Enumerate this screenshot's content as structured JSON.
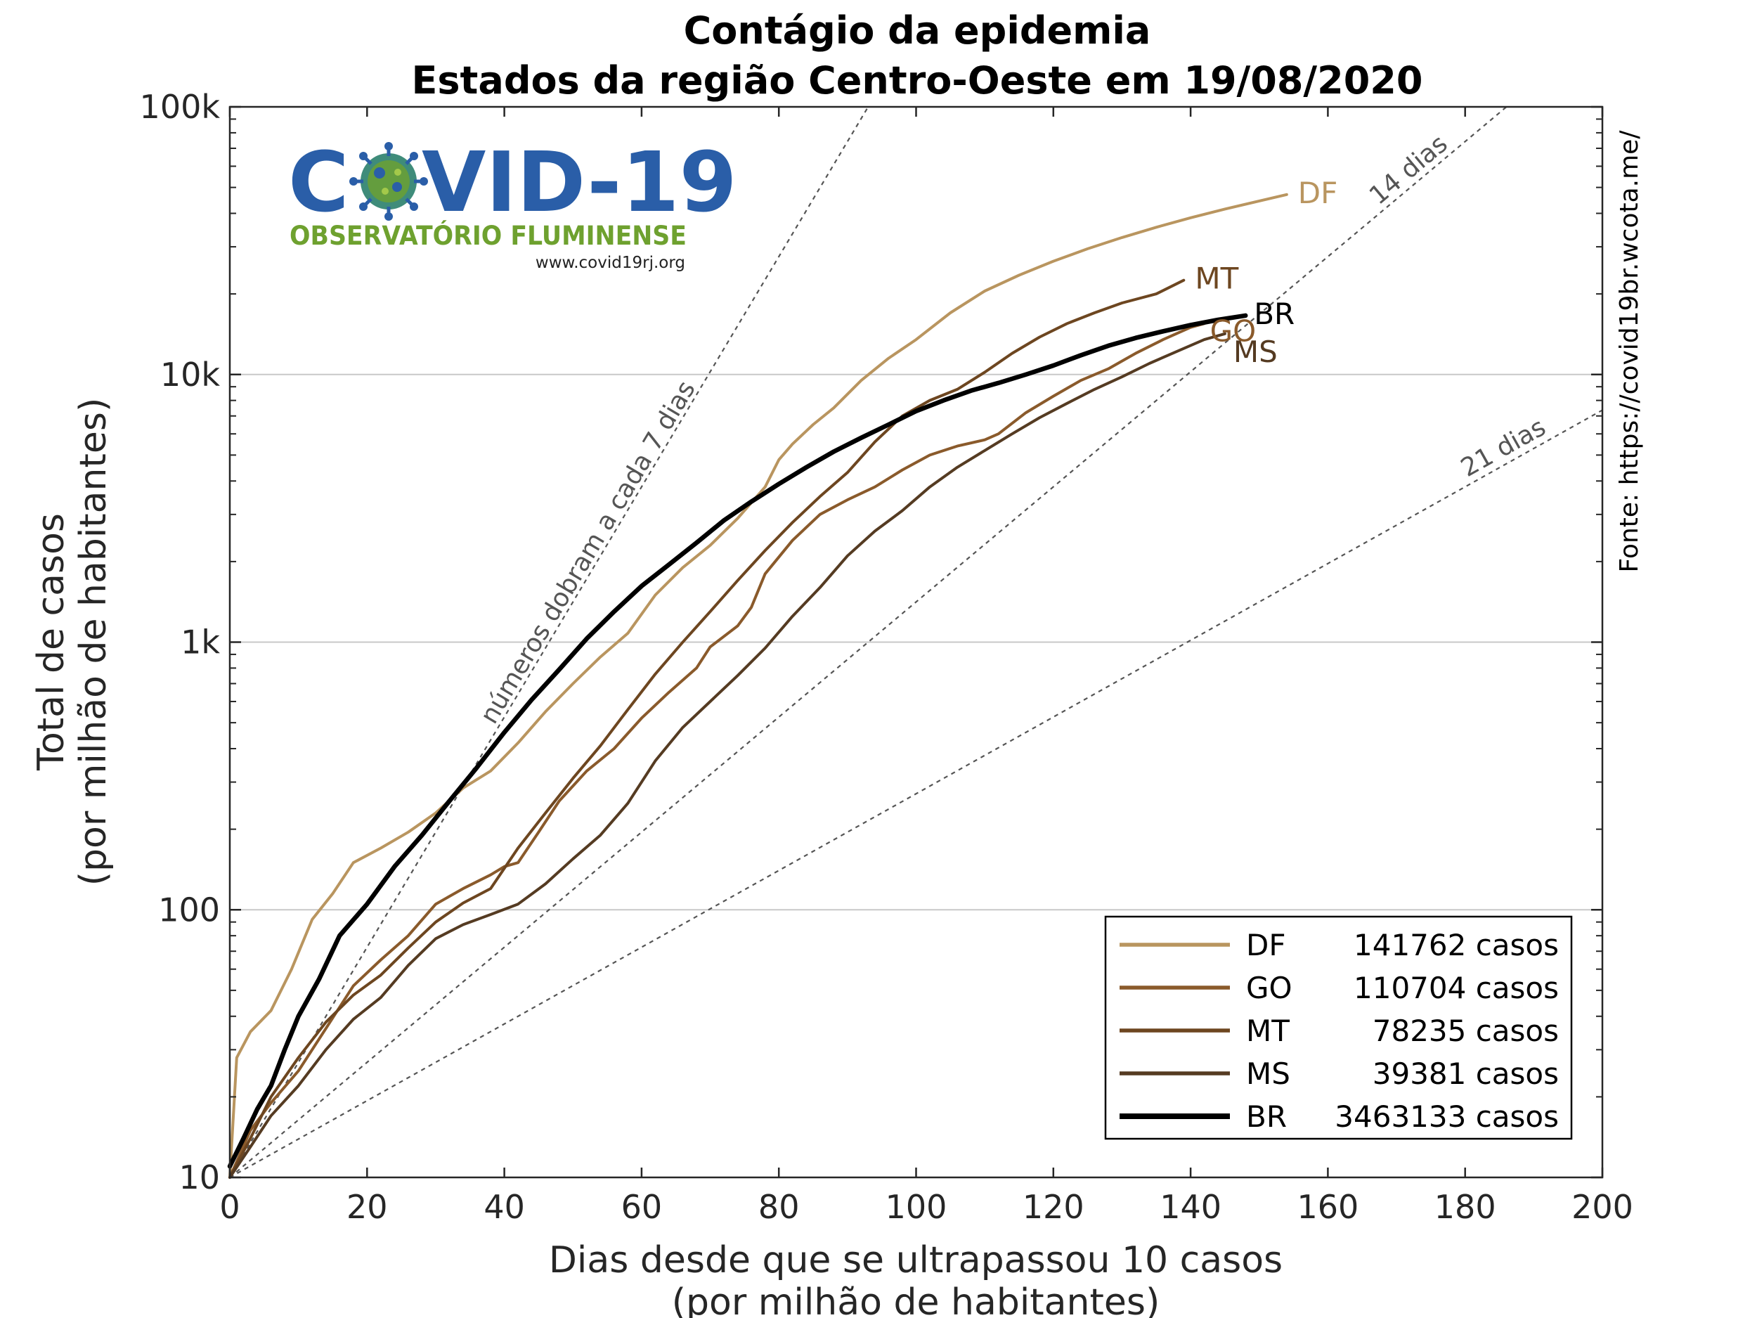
{
  "chart_data": {
    "type": "line",
    "title_lines": [
      "Contágio da epidemia",
      "Estados da região Centro-Oeste em 19/08/2020"
    ],
    "xlabel_lines": [
      "Dias desde que se ultrapassou 10 casos",
      "(por milhão de habitantes)"
    ],
    "ylabel_lines": [
      "Total de casos",
      "(por milhão de habitantes)"
    ],
    "xlim": [
      0,
      200
    ],
    "ylim": [
      10,
      100000
    ],
    "yscale": "log",
    "x_ticks": [
      0,
      20,
      40,
      60,
      80,
      100,
      120,
      140,
      160,
      180,
      200
    ],
    "x_tick_labels": [
      "0",
      "20",
      "40",
      "60",
      "80",
      "100",
      "120",
      "140",
      "160",
      "180",
      "200"
    ],
    "y_ticks": [
      10,
      100,
      1000,
      10000,
      100000
    ],
    "y_tick_labels": [
      "10",
      "100",
      "1k",
      "10k",
      "100k"
    ],
    "grid": "horizontal-major",
    "legend_position": "bottom-right",
    "source": "Fonte: https://covid19br.wcota.me/",
    "reference_lines": [
      {
        "label": "números dobram a cada 7 dias",
        "doubling_days": 7
      },
      {
        "label": "14 dias",
        "doubling_days": 14
      },
      {
        "label": "21 dias",
        "doubling_days": 21
      }
    ],
    "series": [
      {
        "name": "DF",
        "color": "#b9955f",
        "width": 4,
        "legend_text": "141762 casos",
        "points": [
          [
            0,
            10
          ],
          [
            1,
            28
          ],
          [
            3,
            35
          ],
          [
            6,
            42
          ],
          [
            9,
            60
          ],
          [
            12,
            92
          ],
          [
            15,
            115
          ],
          [
            18,
            150
          ],
          [
            22,
            170
          ],
          [
            26,
            195
          ],
          [
            30,
            230
          ],
          [
            34,
            285
          ],
          [
            38,
            330
          ],
          [
            42,
            420
          ],
          [
            46,
            550
          ],
          [
            50,
            700
          ],
          [
            54,
            880
          ],
          [
            58,
            1080
          ],
          [
            62,
            1500
          ],
          [
            66,
            1900
          ],
          [
            70,
            2300
          ],
          [
            74,
            2900
          ],
          [
            78,
            3800
          ],
          [
            80,
            4800
          ],
          [
            82,
            5500
          ],
          [
            85,
            6500
          ],
          [
            88,
            7500
          ],
          [
            92,
            9500
          ],
          [
            96,
            11500
          ],
          [
            100,
            13500
          ],
          [
            105,
            17000
          ],
          [
            110,
            20500
          ],
          [
            115,
            23500
          ],
          [
            120,
            26500
          ],
          [
            125,
            29500
          ],
          [
            130,
            32500
          ],
          [
            135,
            35500
          ],
          [
            140,
            38500
          ],
          [
            145,
            41500
          ],
          [
            150,
            44500
          ],
          [
            154,
            47000
          ]
        ]
      },
      {
        "name": "GO",
        "color": "#8a5a2b",
        "width": 4,
        "legend_text": "110704 casos",
        "points": [
          [
            0,
            10
          ],
          [
            3,
            15
          ],
          [
            6,
            19
          ],
          [
            10,
            25
          ],
          [
            14,
            36
          ],
          [
            18,
            52
          ],
          [
            22,
            65
          ],
          [
            26,
            80
          ],
          [
            30,
            105
          ],
          [
            34,
            120
          ],
          [
            38,
            135
          ],
          [
            40,
            145
          ],
          [
            42,
            150
          ],
          [
            45,
            195
          ],
          [
            48,
            255
          ],
          [
            52,
            330
          ],
          [
            56,
            400
          ],
          [
            60,
            520
          ],
          [
            64,
            650
          ],
          [
            68,
            800
          ],
          [
            70,
            960
          ],
          [
            74,
            1150
          ],
          [
            76,
            1350
          ],
          [
            78,
            1800
          ],
          [
            82,
            2400
          ],
          [
            86,
            3000
          ],
          [
            90,
            3400
          ],
          [
            94,
            3800
          ],
          [
            98,
            4400
          ],
          [
            102,
            5000
          ],
          [
            106,
            5400
          ],
          [
            110,
            5700
          ],
          [
            112,
            6000
          ],
          [
            116,
            7200
          ],
          [
            120,
            8300
          ],
          [
            124,
            9500
          ],
          [
            128,
            10500
          ],
          [
            132,
            12000
          ],
          [
            136,
            13500
          ],
          [
            140,
            15000
          ],
          [
            142,
            15500
          ]
        ]
      },
      {
        "name": "MT",
        "color": "#6d4620",
        "width": 4,
        "legend_text": "78235 casos",
        "points": [
          [
            0,
            10
          ],
          [
            3,
            14
          ],
          [
            6,
            20
          ],
          [
            10,
            28
          ],
          [
            14,
            38
          ],
          [
            18,
            48
          ],
          [
            22,
            57
          ],
          [
            26,
            72
          ],
          [
            30,
            90
          ],
          [
            34,
            106
          ],
          [
            38,
            120
          ],
          [
            42,
            170
          ],
          [
            46,
            230
          ],
          [
            50,
            310
          ],
          [
            54,
            410
          ],
          [
            58,
            560
          ],
          [
            62,
            760
          ],
          [
            66,
            1000
          ],
          [
            70,
            1300
          ],
          [
            74,
            1700
          ],
          [
            78,
            2200
          ],
          [
            82,
            2800
          ],
          [
            86,
            3500
          ],
          [
            90,
            4300
          ],
          [
            94,
            5600
          ],
          [
            98,
            7000
          ],
          [
            102,
            8000
          ],
          [
            106,
            8800
          ],
          [
            110,
            10200
          ],
          [
            114,
            12000
          ],
          [
            118,
            13800
          ],
          [
            122,
            15500
          ],
          [
            126,
            17000
          ],
          [
            130,
            18500
          ],
          [
            135,
            20000
          ],
          [
            139,
            22500
          ]
        ]
      },
      {
        "name": "MS",
        "color": "#553b22",
        "width": 4,
        "legend_text": "39381 casos",
        "points": [
          [
            0,
            10
          ],
          [
            3,
            13
          ],
          [
            6,
            17
          ],
          [
            10,
            22
          ],
          [
            14,
            30
          ],
          [
            18,
            39
          ],
          [
            22,
            47
          ],
          [
            26,
            62
          ],
          [
            30,
            78
          ],
          [
            34,
            88
          ],
          [
            38,
            96
          ],
          [
            42,
            105
          ],
          [
            46,
            125
          ],
          [
            50,
            155
          ],
          [
            54,
            190
          ],
          [
            58,
            250
          ],
          [
            62,
            360
          ],
          [
            66,
            480
          ],
          [
            70,
            600
          ],
          [
            74,
            750
          ],
          [
            78,
            950
          ],
          [
            82,
            1250
          ],
          [
            86,
            1600
          ],
          [
            90,
            2100
          ],
          [
            94,
            2600
          ],
          [
            98,
            3100
          ],
          [
            102,
            3800
          ],
          [
            106,
            4500
          ],
          [
            110,
            5200
          ],
          [
            114,
            6000
          ],
          [
            118,
            6900
          ],
          [
            122,
            7800
          ],
          [
            126,
            8800
          ],
          [
            130,
            9800
          ],
          [
            134,
            11000
          ],
          [
            138,
            12200
          ],
          [
            142,
            13500
          ],
          [
            145,
            14200
          ]
        ]
      },
      {
        "name": "BR",
        "color": "#000000",
        "width": 6.5,
        "legend_text": "3463133 casos",
        "points": [
          [
            0,
            11
          ],
          [
            2,
            14
          ],
          [
            4,
            18
          ],
          [
            6,
            22
          ],
          [
            8,
            30
          ],
          [
            10,
            40
          ],
          [
            13,
            55
          ],
          [
            16,
            80
          ],
          [
            20,
            105
          ],
          [
            24,
            145
          ],
          [
            28,
            190
          ],
          [
            32,
            255
          ],
          [
            36,
            340
          ],
          [
            40,
            460
          ],
          [
            44,
            610
          ],
          [
            48,
            790
          ],
          [
            52,
            1030
          ],
          [
            56,
            1300
          ],
          [
            60,
            1620
          ],
          [
            64,
            1950
          ],
          [
            68,
            2350
          ],
          [
            72,
            2850
          ],
          [
            76,
            3350
          ],
          [
            80,
            3900
          ],
          [
            84,
            4500
          ],
          [
            88,
            5150
          ],
          [
            92,
            5800
          ],
          [
            96,
            6500
          ],
          [
            100,
            7300
          ],
          [
            104,
            8000
          ],
          [
            108,
            8700
          ],
          [
            112,
            9300
          ],
          [
            116,
            10000
          ],
          [
            120,
            10800
          ],
          [
            124,
            11800
          ],
          [
            128,
            12800
          ],
          [
            132,
            13700
          ],
          [
            136,
            14500
          ],
          [
            140,
            15300
          ],
          [
            144,
            16000
          ],
          [
            148,
            16600
          ]
        ]
      }
    ],
    "end_labels": [
      {
        "series": "DF",
        "text": "DF"
      },
      {
        "series": "MT",
        "text": "MT"
      },
      {
        "series": "GO",
        "text": "GO"
      },
      {
        "series": "BR",
        "text": "BR"
      },
      {
        "series": "MS",
        "text": "MS"
      }
    ]
  },
  "logo": {
    "title_prefix": "C",
    "title_suffix": "VID-19",
    "subtitle": "OBSERVATÓRIO FLUMINENSE",
    "url": "www.covid19rj.org",
    "primary_color": "#2a5ea8",
    "accent_color": "#6ea12f"
  }
}
